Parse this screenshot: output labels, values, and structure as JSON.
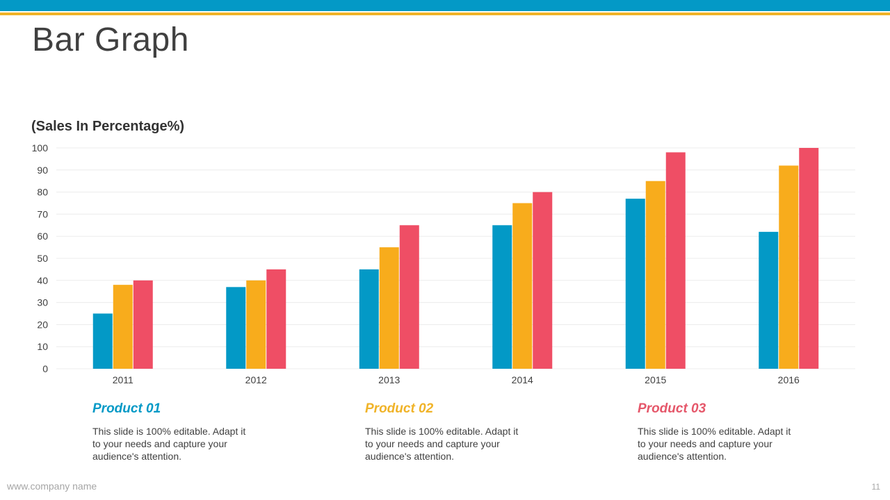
{
  "slide": {
    "title": "Bar Graph",
    "footer_url": "www.company name",
    "page_number": "11"
  },
  "chart_data": {
    "type": "bar",
    "title": "(Sales In Percentage%)",
    "xlabel": "",
    "ylabel": "",
    "ylim": [
      0,
      100
    ],
    "yticks": [
      0,
      10,
      20,
      30,
      40,
      50,
      60,
      70,
      80,
      90,
      100
    ],
    "grid": true,
    "categories": [
      "2011",
      "2012",
      "2013",
      "2014",
      "2015",
      "2016"
    ],
    "series": [
      {
        "name": "Product 01",
        "color": "#0399c6",
        "values": [
          25,
          37,
          45,
          65,
          77,
          62
        ]
      },
      {
        "name": "Product 02",
        "color": "#f8ac1c",
        "values": [
          38,
          40,
          55,
          75,
          85,
          92
        ]
      },
      {
        "name": "Product 03",
        "color": "#ef4e65",
        "values": [
          40,
          45,
          65,
          80,
          98,
          100
        ]
      }
    ]
  },
  "products": [
    {
      "title": "Product 01",
      "color": "#0399c6",
      "text": "This slide is 100% editable. Adapt it to your needs and capture your audience's attention."
    },
    {
      "title": "Product 02",
      "color": "#f0b328",
      "text": "This slide is 100% editable. Adapt it to your needs and capture your audience's attention."
    },
    {
      "title": "Product 03",
      "color": "#e5576a",
      "text": "This slide is 100% editable. Adapt it to your needs and capture your audience's attention."
    }
  ]
}
